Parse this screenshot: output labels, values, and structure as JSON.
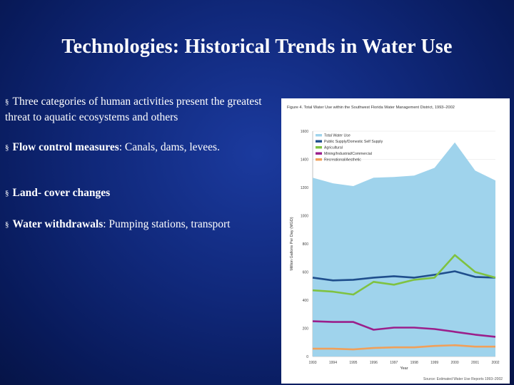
{
  "slide": {
    "title": "Technologies: Historical Trends in Water Use",
    "bullets": [
      {
        "bold": "",
        "text": "Three categories of human activities present the greatest threat to aquatic ecosystems and others"
      },
      {
        "bold": "Flow control measures",
        "text": ": Canals, dams, levees."
      },
      {
        "bold": "Land- cover changes",
        "text": ""
      },
      {
        "bold": "Water withdrawals",
        "text": ": Pumping stations, transport"
      }
    ],
    "bullet_marker": "§"
  },
  "chart_data": {
    "type": "area",
    "title": "Figure 4. Total Water Use within the Southwest Florida Water Management District, 1993–2002",
    "xlabel": "Year",
    "ylabel": "Million Gallons Per Day (MGD)",
    "x": [
      "1993",
      "1994",
      "1995",
      "1996",
      "1997",
      "1998",
      "1999",
      "2000",
      "2001",
      "2002"
    ],
    "ylim": [
      0,
      1600
    ],
    "yticks": [
      "0",
      "200",
      "400",
      "600",
      "800",
      "1000",
      "1200",
      "1400",
      "1600"
    ],
    "source": "Source: Estimated Water Use Reports 1993–2002",
    "series": [
      {
        "name": "Total Water Use",
        "kind": "area",
        "color": "#9fd3ec",
        "values": [
          1270,
          1230,
          1210,
          1270,
          1275,
          1285,
          1340,
          1520,
          1320,
          1250
        ]
      },
      {
        "name": "Public Supply/Domestic Self Supply",
        "kind": "line",
        "color": "#1f4e8c",
        "values": [
          560,
          540,
          545,
          560,
          570,
          560,
          580,
          605,
          565,
          560
        ]
      },
      {
        "name": "Agricultural",
        "kind": "line",
        "color": "#7fc241",
        "values": [
          470,
          460,
          440,
          530,
          510,
          545,
          560,
          720,
          600,
          560
        ]
      },
      {
        "name": "Mining/Industrial/Commercial",
        "kind": "line",
        "color": "#9b1f8b",
        "values": [
          250,
          245,
          245,
          190,
          205,
          205,
          195,
          175,
          155,
          140
        ]
      },
      {
        "name": "Recreational/Aesthetic",
        "kind": "line",
        "color": "#f0a05a",
        "values": [
          55,
          55,
          50,
          60,
          65,
          65,
          75,
          80,
          70,
          70
        ]
      }
    ]
  }
}
